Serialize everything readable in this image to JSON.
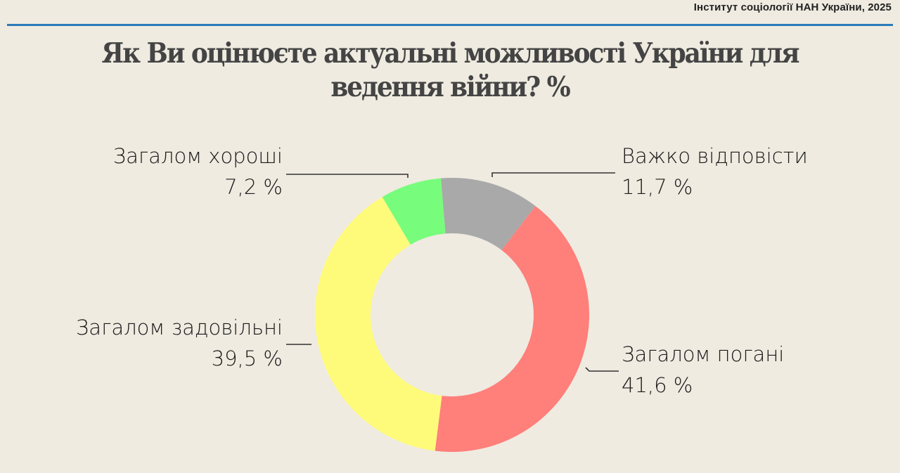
{
  "header": {
    "source": "Інститут соціології НАН України, 2025",
    "rule_color": "#2b7bb9"
  },
  "title": {
    "line1": "Як Ви оцінюєте актуальні можливості України для",
    "line2": "ведення війни? %"
  },
  "labels": {
    "good": {
      "name": "Загалом хороші",
      "value": "7,2 %"
    },
    "hard": {
      "name": "Важко відповісти",
      "value": "11,7 %"
    },
    "satisfactory": {
      "name": "Загалом задовільні",
      "value": "39,5 %"
    },
    "bad": {
      "name": "Загалом погані",
      "value": "41,6 %"
    }
  },
  "chart_data": {
    "type": "pie",
    "subtype": "donut",
    "title": "Як Ви оцінюєте актуальні можливості України для ведення війни? %",
    "categories": [
      "Важко відповісти",
      "Загалом погані",
      "Загалом задовільні",
      "Загалом хороші"
    ],
    "values": [
      11.7,
      41.6,
      39.5,
      7.2
    ],
    "colors": [
      "#a9a9a9",
      "#ff7f7a",
      "#fffb7a",
      "#78fc7c"
    ],
    "unit": "%",
    "start_angle_deg": -4.7,
    "direction": "clockwise",
    "legend": "data labels with leader lines",
    "source": "Інститут соціології НАН України, 2025"
  }
}
